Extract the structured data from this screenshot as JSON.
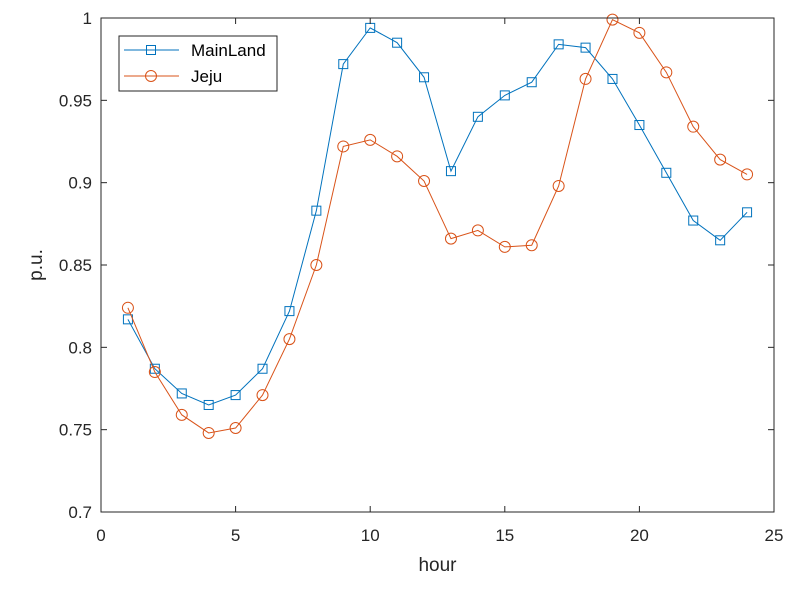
{
  "chart_data": {
    "type": "line",
    "title": "",
    "xlabel": "hour",
    "ylabel": "p.u.",
    "xlim": [
      0,
      25
    ],
    "ylim": [
      0.7,
      1.0
    ],
    "xticks": [
      "0",
      "5",
      "10",
      "15",
      "20",
      "25"
    ],
    "yticks": [
      "0.7",
      "0.75",
      "0.8",
      "0.85",
      "0.9",
      "0.95",
      "1"
    ],
    "grid": false,
    "legend_position": "top-left",
    "x": [
      1,
      2,
      3,
      4,
      5,
      6,
      7,
      8,
      9,
      10,
      11,
      12,
      13,
      14,
      15,
      16,
      17,
      18,
      19,
      20,
      21,
      22,
      23,
      24
    ],
    "series": [
      {
        "name": "MainLand",
        "marker": "square",
        "color": "#0072BD",
        "values": [
          0.817,
          0.787,
          0.772,
          0.765,
          0.771,
          0.787,
          0.822,
          0.883,
          0.972,
          0.994,
          0.985,
          0.964,
          0.907,
          0.94,
          0.953,
          0.961,
          0.984,
          0.982,
          0.963,
          0.935,
          0.906,
          0.877,
          0.865,
          0.882
        ]
      },
      {
        "name": "Jeju",
        "marker": "circle",
        "color": "#D95319",
        "values": [
          0.824,
          0.785,
          0.759,
          0.748,
          0.751,
          0.771,
          0.805,
          0.85,
          0.922,
          0.926,
          0.916,
          0.901,
          0.866,
          0.871,
          0.861,
          0.862,
          0.898,
          0.963,
          0.999,
          0.991,
          0.967,
          0.934,
          0.914,
          0.905
        ]
      }
    ]
  }
}
